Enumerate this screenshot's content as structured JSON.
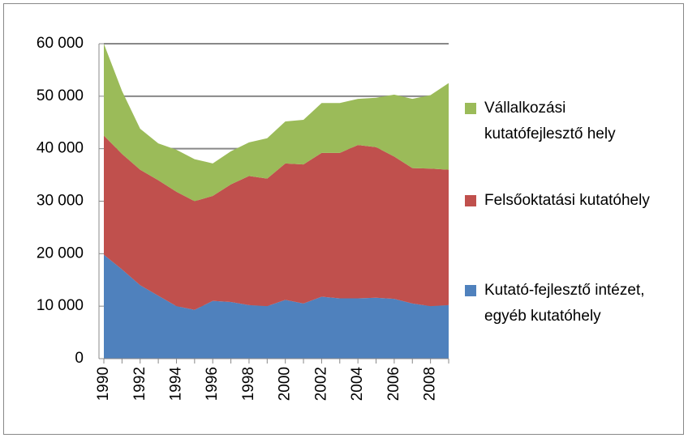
{
  "chart_data": {
    "type": "stacked_area",
    "categories": [
      "1990",
      null,
      "1992",
      null,
      "1994",
      null,
      "1996",
      null,
      "1998",
      null,
      "2000",
      null,
      "2002",
      null,
      "2004",
      null,
      "2006",
      null,
      "2008",
      null
    ],
    "series": [
      {
        "name": "Kutató-fejlesztő intézet, egyéb kutatóhely",
        "color": "#4f81bd",
        "values": [
          19800,
          17000,
          14000,
          12000,
          10000,
          9300,
          11000,
          10800,
          10200,
          10000,
          11200,
          10500,
          11800,
          11500,
          11500,
          11600,
          11400,
          10500,
          10000,
          10200
        ]
      },
      {
        "name": "Felsőoktatási kutatóhely",
        "color": "#c0504d",
        "values": [
          22700,
          22000,
          22000,
          22000,
          21800,
          20700,
          20000,
          22400,
          24600,
          24300,
          26000,
          26500,
          27400,
          27700,
          29200,
          28700,
          27100,
          25800,
          26200,
          25800
        ]
      },
      {
        "name": "Vállalkozási kutatófejlesztő hely",
        "color": "#9bbb59",
        "values": [
          17500,
          12000,
          7800,
          7000,
          8000,
          8000,
          6200,
          6300,
          6400,
          7700,
          8000,
          8500,
          9500,
          9500,
          8800,
          9400,
          11800,
          13200,
          14000,
          16500
        ]
      }
    ],
    "ylim": [
      0,
      60000
    ],
    "yticks": [
      {
        "value": 0,
        "label": "0"
      },
      {
        "value": 10000,
        "label": "10 000"
      },
      {
        "value": 20000,
        "label": "20 000"
      },
      {
        "value": 30000,
        "label": "30 000"
      },
      {
        "value": 40000,
        "label": "40 000"
      },
      {
        "value": 50000,
        "label": "50 000"
      },
      {
        "value": 60000,
        "label": "60 000"
      }
    ],
    "grid": true,
    "legend": "right"
  }
}
